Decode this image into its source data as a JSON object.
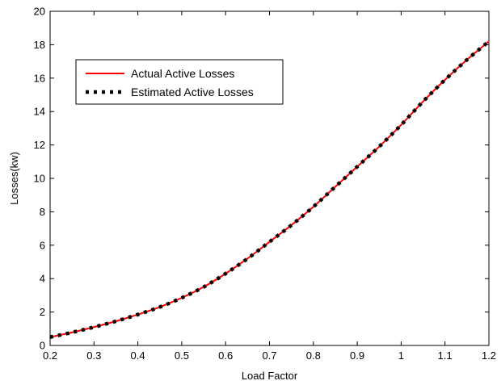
{
  "chart_data": {
    "type": "line",
    "title": "",
    "xlabel": "Load Factor",
    "ylabel": "Losses(kw)",
    "xlim": [
      0.2,
      1.2
    ],
    "ylim": [
      0,
      20
    ],
    "xticks": [
      0.2,
      0.3,
      0.4,
      0.5,
      0.6,
      0.7,
      0.8,
      0.9,
      1,
      1.1,
      1.2
    ],
    "xtick_labels": [
      "0.2",
      "0.3",
      "0.4",
      "0.5",
      "0.6",
      "0.7",
      "0.8",
      "0.9",
      "1",
      "1.1",
      "1.2"
    ],
    "yticks": [
      0,
      2,
      4,
      6,
      8,
      10,
      12,
      14,
      16,
      18,
      20
    ],
    "ytick_labels": [
      "0",
      "2",
      "4",
      "6",
      "8",
      "10",
      "12",
      "14",
      "16",
      "18",
      "20"
    ],
    "grid": false,
    "legend_position": "top-left",
    "series": [
      {
        "name": "Actual Active Losses",
        "color": "#ff0000",
        "style": "solid",
        "x": [
          0.2,
          0.25,
          0.3,
          0.35,
          0.4,
          0.45,
          0.5,
          0.55,
          0.6,
          0.65,
          0.7,
          0.75,
          0.8,
          0.85,
          0.9,
          0.95,
          1.0,
          1.05,
          1.1,
          1.15,
          1.2
        ],
        "values": [
          0.5,
          0.78,
          1.1,
          1.45,
          1.85,
          2.3,
          2.85,
          3.5,
          4.3,
          5.2,
          6.2,
          7.2,
          8.3,
          9.5,
          10.7,
          11.9,
          13.2,
          14.6,
          15.9,
          17.1,
          18.2
        ]
      },
      {
        "name": "Estimated Active Losses",
        "color": "#000000",
        "style": "dotted",
        "x": [
          0.2,
          0.25,
          0.3,
          0.35,
          0.4,
          0.45,
          0.5,
          0.55,
          0.6,
          0.65,
          0.7,
          0.75,
          0.8,
          0.85,
          0.9,
          0.95,
          1.0,
          1.05,
          1.1,
          1.15,
          1.2
        ],
        "values": [
          0.5,
          0.78,
          1.1,
          1.45,
          1.85,
          2.3,
          2.85,
          3.5,
          4.3,
          5.2,
          6.2,
          7.2,
          8.3,
          9.5,
          10.7,
          11.9,
          13.2,
          14.6,
          15.9,
          17.1,
          18.2
        ]
      }
    ]
  }
}
